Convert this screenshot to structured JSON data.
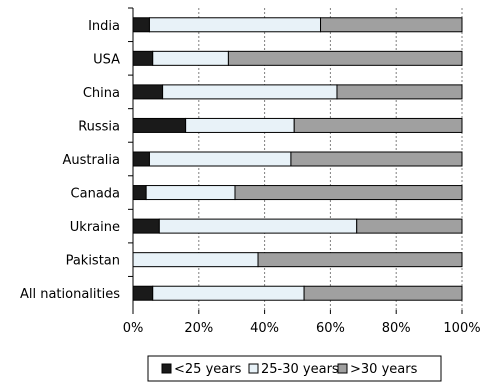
{
  "chart_data": {
    "type": "bar",
    "orientation": "horizontal",
    "stacked": "percent",
    "categories": [
      "India",
      "USA",
      "China",
      "Russia",
      "Australia",
      "Canada",
      "Ukraine",
      "Pakistan",
      "All nationalities"
    ],
    "series": [
      {
        "name": "<25 years",
        "color": "#1a1a1a",
        "values": [
          5,
          6,
          9,
          16,
          5,
          4,
          8,
          0,
          6
        ]
      },
      {
        "name": "25-30 years",
        "color": "#e8f2f8",
        "values": [
          52,
          23,
          53,
          33,
          43,
          27,
          60,
          38,
          46
        ]
      },
      {
        "name": ">30 years",
        "color": "#a0a0a0",
        "values": [
          43,
          71,
          38,
          51,
          52,
          69,
          32,
          62,
          48
        ]
      }
    ],
    "xlim": [
      0,
      100
    ],
    "x_ticks": [
      "0%",
      "20%",
      "40%",
      "60%",
      "80%",
      "100%"
    ],
    "grid": "vertical dashed",
    "legend_position": "bottom"
  }
}
